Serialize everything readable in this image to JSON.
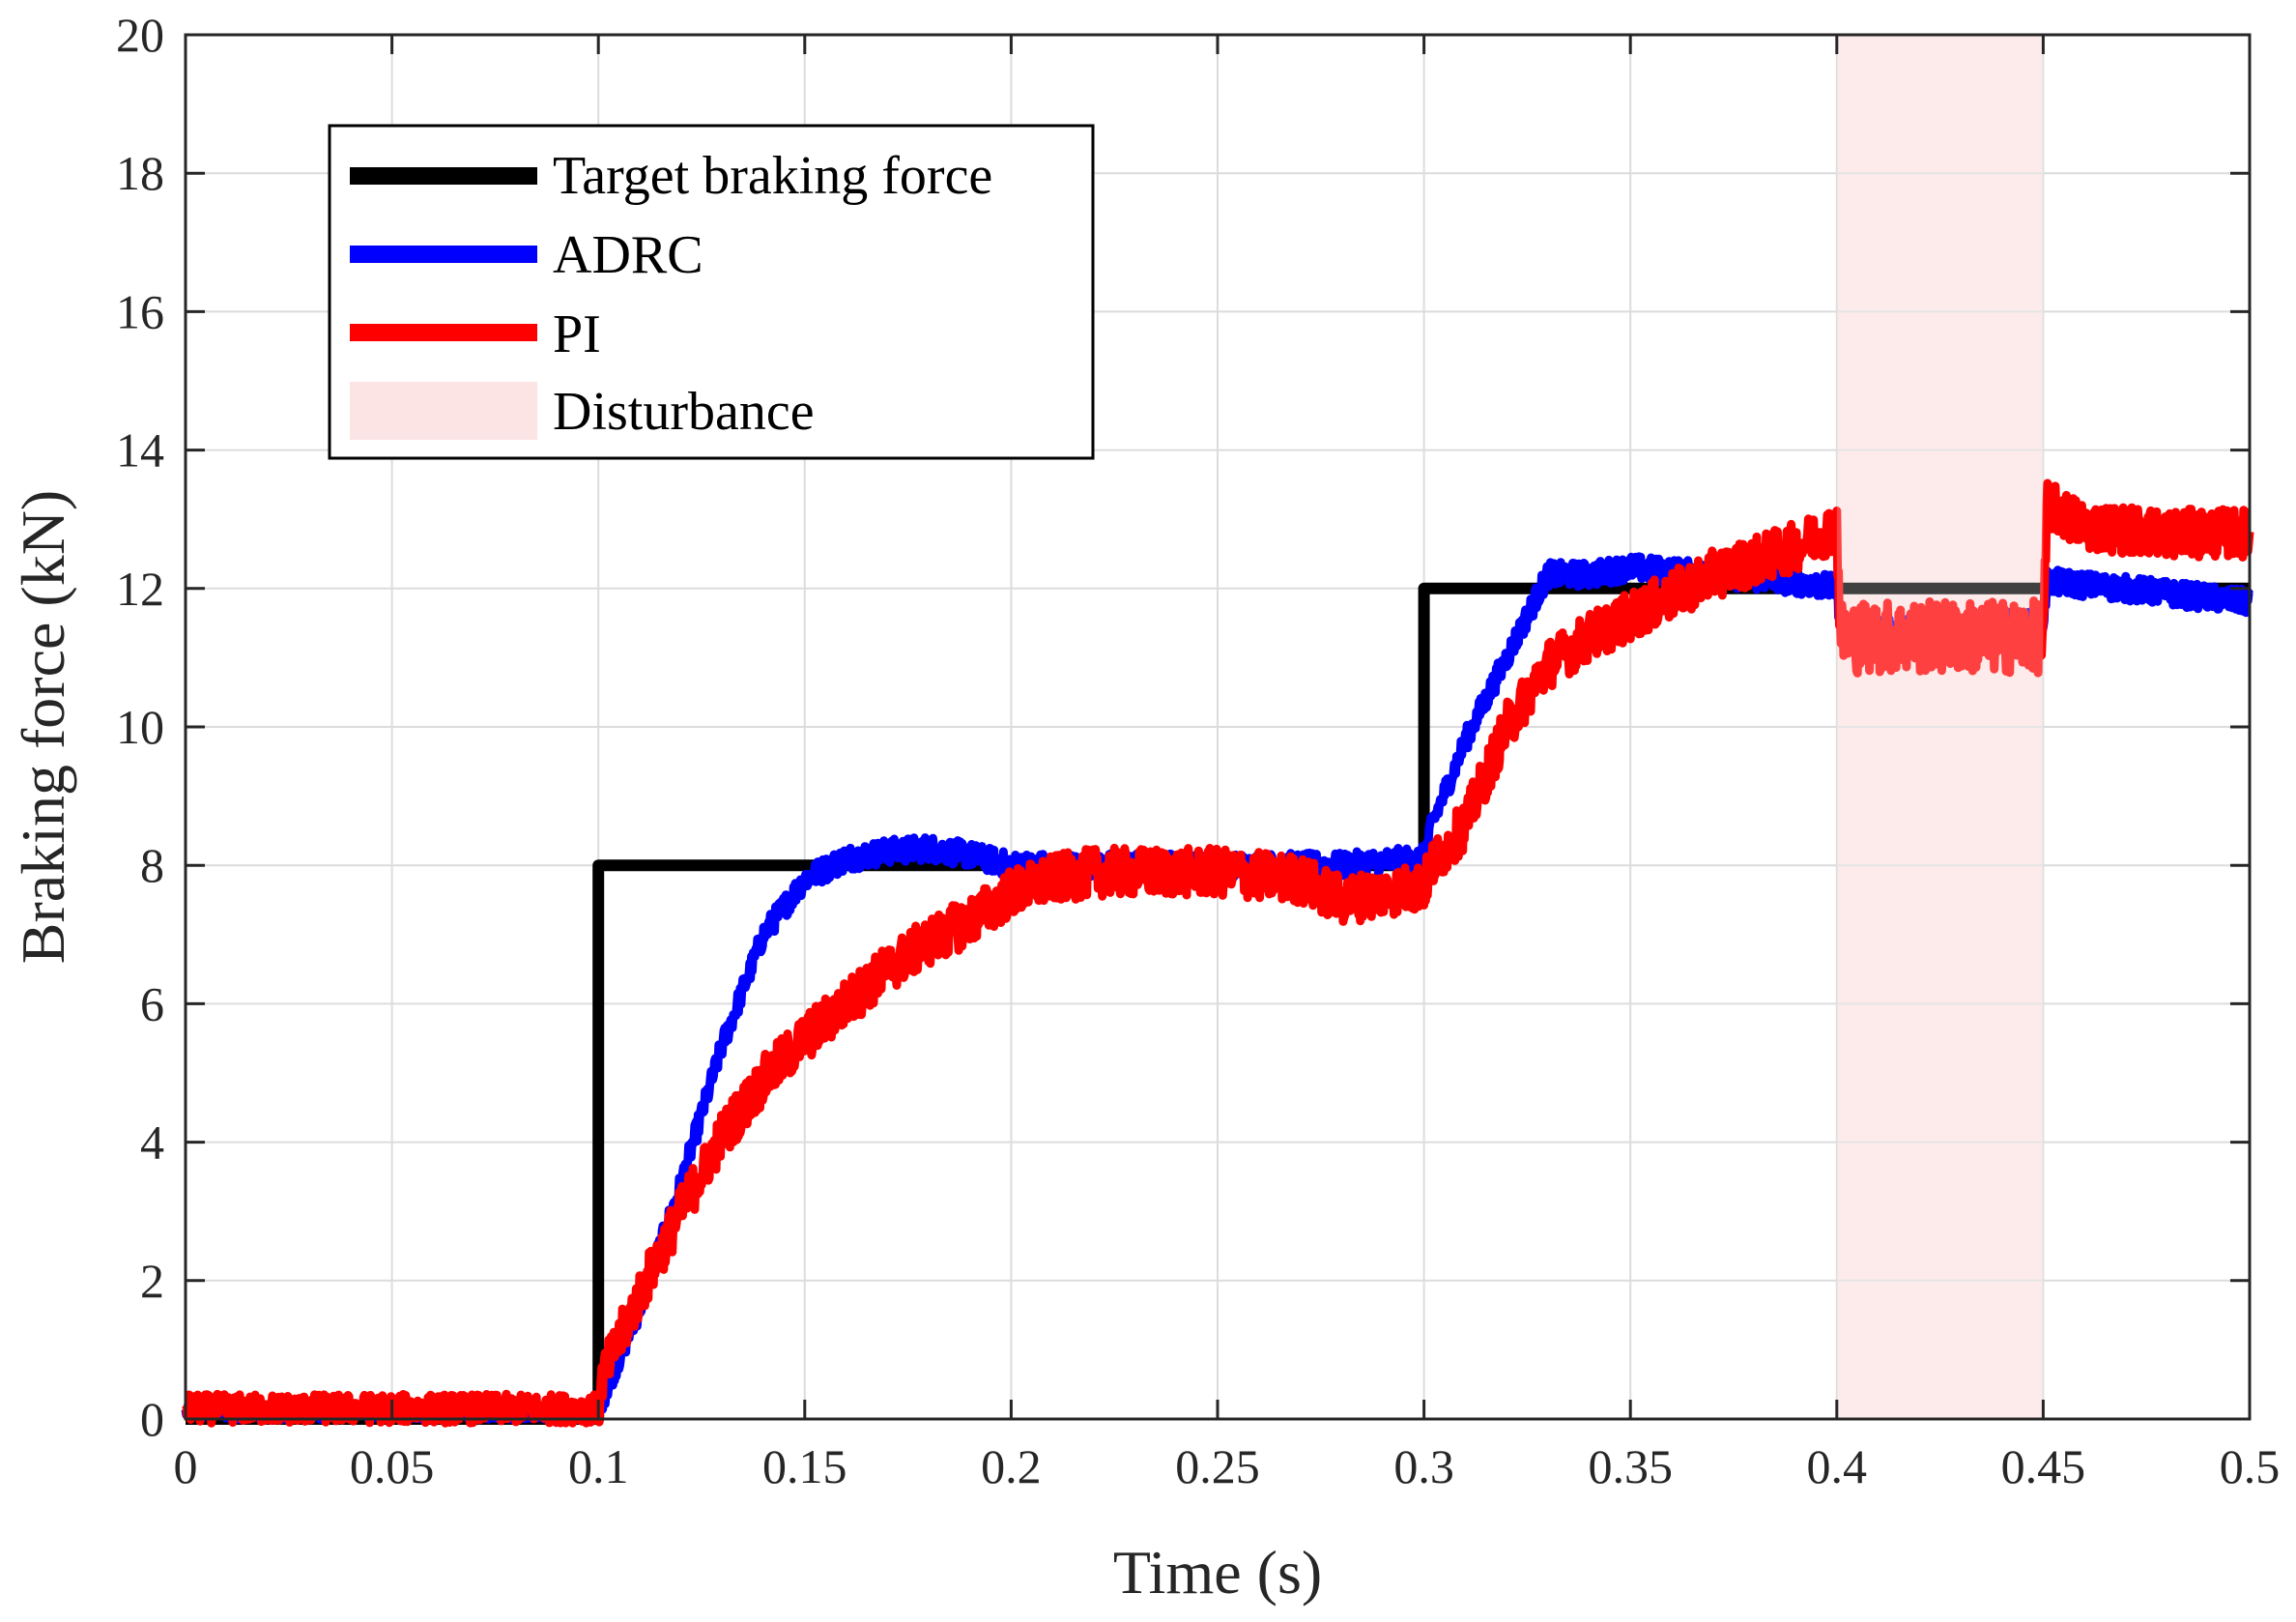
{
  "chart_data": {
    "type": "line",
    "title": "",
    "xlabel": "Time (s)",
    "ylabel": "Braking force (kN)",
    "xlim": [
      0,
      0.5
    ],
    "ylim": [
      0,
      20
    ],
    "xticks": [
      0,
      0.05,
      0.1,
      0.15,
      0.2,
      0.25,
      0.3,
      0.35,
      0.4,
      0.45,
      0.5
    ],
    "xtick_labels": [
      "0",
      "0.05",
      "0.1",
      "0.15",
      "0.2",
      "0.25",
      "0.3",
      "0.35",
      "0.4",
      "0.45",
      "0.5"
    ],
    "yticks": [
      0,
      2,
      4,
      6,
      8,
      10,
      12,
      14,
      16,
      18,
      20
    ],
    "ytick_labels": [
      "0",
      "2",
      "4",
      "6",
      "8",
      "10",
      "12",
      "14",
      "16",
      "18",
      "20"
    ],
    "grid": true,
    "legend_position": "top-left",
    "disturbance": {
      "name": "Disturbance",
      "x_start": 0.4,
      "x_end": 0.45,
      "color": "#fde4e4"
    },
    "series": [
      {
        "name": "Target braking force",
        "color": "#000000",
        "noise": 0,
        "x": [
          0,
          0.1,
          0.1,
          0.3,
          0.3,
          0.5
        ],
        "y": [
          0,
          0,
          8,
          8,
          12,
          12
        ]
      },
      {
        "name": "ADRC",
        "color": "#0000ff",
        "noise": 0.18,
        "x": [
          0,
          0.1,
          0.101,
          0.11,
          0.12,
          0.13,
          0.14,
          0.15,
          0.16,
          0.17,
          0.18,
          0.19,
          0.2,
          0.22,
          0.25,
          0.28,
          0.3,
          0.302,
          0.31,
          0.32,
          0.33,
          0.34,
          0.35,
          0.37,
          0.39,
          0.4,
          0.401,
          0.45,
          0.451,
          0.47,
          0.5
        ],
        "y": [
          0.1,
          0.1,
          0.3,
          1.6,
          3.4,
          5.4,
          7.0,
          7.8,
          8.1,
          8.2,
          8.25,
          8.15,
          8.0,
          8.0,
          8.0,
          8.0,
          8.1,
          8.6,
          9.8,
          11.0,
          12.2,
          12.2,
          12.3,
          12.2,
          12.1,
          12.0,
          11.4,
          11.5,
          12.1,
          12.0,
          11.8
        ]
      },
      {
        "name": "PI",
        "color": "#ff0000",
        "noise": 0.35,
        "x": [
          0,
          0.1,
          0.101,
          0.11,
          0.12,
          0.13,
          0.14,
          0.15,
          0.16,
          0.17,
          0.18,
          0.19,
          0.2,
          0.21,
          0.22,
          0.25,
          0.27,
          0.28,
          0.3,
          0.302,
          0.31,
          0.32,
          0.33,
          0.34,
          0.35,
          0.37,
          0.39,
          0.4,
          0.401,
          0.45,
          0.451,
          0.46,
          0.48,
          0.5
        ],
        "y": [
          0.15,
          0.15,
          0.6,
          1.8,
          3.0,
          4.1,
          4.9,
          5.5,
          6.0,
          6.5,
          6.9,
          7.2,
          7.6,
          7.8,
          7.9,
          7.9,
          7.8,
          7.5,
          7.7,
          8.0,
          8.6,
          10.0,
          10.9,
          11.3,
          11.6,
          12.2,
          12.6,
          12.9,
          11.3,
          11.3,
          13.2,
          12.9,
          12.8,
          12.8
        ]
      }
    ]
  }
}
